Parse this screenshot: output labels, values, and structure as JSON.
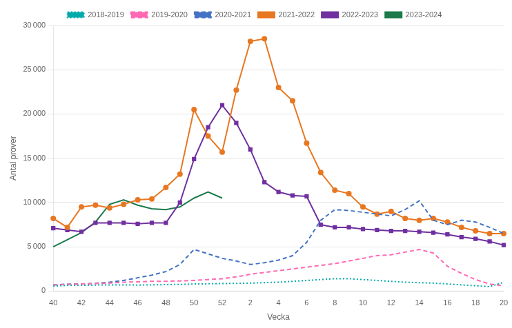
{
  "chart_data": {
    "type": "line",
    "xlabel": "Vecka",
    "ylabel": "Antal prover",
    "categories": [
      "40",
      null,
      "42",
      null,
      "44",
      null,
      "46",
      null,
      "48",
      null,
      "50",
      null,
      "52",
      null,
      "2",
      null,
      "4",
      null,
      "6",
      null,
      "8",
      null,
      "10",
      null,
      "12",
      null,
      "14",
      null,
      "16",
      null,
      "18",
      null,
      "20"
    ],
    "ylim": [
      0,
      30000
    ],
    "yticks": [
      0,
      {
        "value": 5000,
        "label": "5 000"
      },
      {
        "value": 10000,
        "label": "10 000"
      },
      {
        "value": 15000,
        "label": "15 000"
      },
      {
        "value": 20000,
        "label": "20 000"
      },
      {
        "value": 25000,
        "label": "25 000"
      },
      {
        "value": 30000,
        "label": "30 000"
      }
    ],
    "grid": true,
    "legend": "top",
    "series": [
      {
        "name": "2018-2019",
        "color": "#00AAAA",
        "line_style": "dotted",
        "values": [
          550,
          650,
          650,
          680,
          700,
          700,
          680,
          700,
          730,
          750,
          800,
          820,
          850,
          870,
          900,
          950,
          1000,
          1100,
          1200,
          1300,
          1400,
          1400,
          1300,
          1200,
          1100,
          1000,
          950,
          900,
          800,
          700,
          600,
          500,
          1000
        ]
      },
      {
        "name": "2019-2020",
        "color": "#FF69B4",
        "line_style": "dashed",
        "values": [
          700,
          750,
          800,
          850,
          900,
          1000,
          1050,
          1100,
          1100,
          1150,
          1200,
          1300,
          1400,
          1600,
          1900,
          2100,
          2300,
          2500,
          2700,
          2900,
          3100,
          3400,
          3700,
          4000,
          4100,
          4400,
          4700,
          4300,
          2800,
          2000,
          1300,
          800,
          600
        ]
      },
      {
        "name": "2020-2021",
        "color": "#4472C4",
        "line_style": "dashed",
        "values": [
          700,
          780,
          800,
          870,
          1000,
          1200,
          1500,
          1800,
          2200,
          3000,
          4700,
          4200,
          3700,
          3400,
          3000,
          3200,
          3500,
          4000,
          5500,
          8000,
          9200,
          9100,
          8900,
          8700,
          8500,
          9200,
          10200,
          8000,
          7500,
          8000,
          7800,
          7200,
          6500
        ]
      },
      {
        "name": "2021-2022",
        "color": "#E87722",
        "line_style": "solid",
        "marker": "circle",
        "values": [
          8200,
          7200,
          9500,
          9700,
          9400,
          9800,
          10300,
          10400,
          11700,
          13200,
          20500,
          17500,
          15700,
          22700,
          28200,
          28500,
          23000,
          21500,
          16700,
          13400,
          11400,
          11000,
          9500,
          8700,
          9000,
          8200,
          8000,
          8200,
          7800,
          7200,
          6800,
          6500,
          6500
        ]
      },
      {
        "name": "2022-2023",
        "color": "#7030A0",
        "line_style": "solid",
        "marker": "square",
        "values": [
          7100,
          6900,
          6700,
          7700,
          7700,
          7700,
          7600,
          7700,
          7700,
          10000,
          14900,
          18500,
          21000,
          19000,
          16000,
          12300,
          11200,
          10800,
          10700,
          7500,
          7200,
          7200,
          7000,
          6900,
          6800,
          6800,
          6700,
          6600,
          6400,
          6100,
          5900,
          5600,
          5200
        ]
      },
      {
        "name": "2023-2024",
        "color": "#1A7A4A",
        "line_style": "solid",
        "values": [
          5000,
          5800,
          6600,
          7800,
          9800,
          10300,
          9700,
          9300,
          9200,
          9500,
          10500,
          11200,
          10500,
          null,
          null,
          null,
          null,
          null,
          null,
          null,
          null,
          null,
          null,
          null,
          null,
          null,
          null,
          null,
          null,
          null,
          null,
          null,
          null
        ]
      }
    ]
  }
}
